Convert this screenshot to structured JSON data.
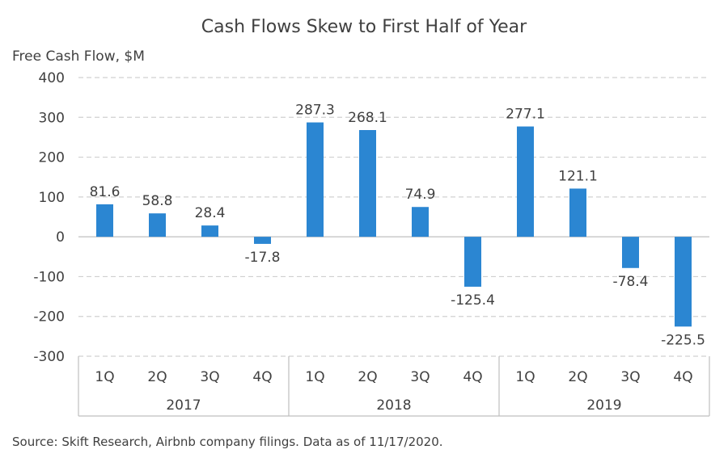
{
  "chart_data": {
    "type": "bar",
    "title": "Cash Flows Skew to First Half of Year",
    "ylabel": "Free Cash Flow, $M",
    "xlabel": "",
    "ylim": [
      -300,
      400
    ],
    "yticks": [
      "400",
      "300",
      "200",
      "100",
      "0",
      "-100",
      "-200",
      "-300"
    ],
    "ytick_values": [
      400,
      300,
      200,
      100,
      0,
      -100,
      -200,
      -300
    ],
    "grid": true,
    "categories": [
      "1Q",
      "2Q",
      "3Q",
      "4Q",
      "1Q",
      "2Q",
      "3Q",
      "4Q",
      "1Q",
      "2Q",
      "3Q",
      "4Q"
    ],
    "groups": [
      "2017",
      "2018",
      "2019"
    ],
    "values": [
      81.6,
      58.8,
      28.4,
      -17.8,
      287.3,
      268.1,
      74.9,
      -125.4,
      277.1,
      121.1,
      -78.4,
      -225.5
    ],
    "labels": [
      "81.6",
      "58.8",
      "28.4",
      "-17.8",
      "287.3",
      "268.1",
      "74.9",
      "-125.4",
      "277.1",
      "121.1",
      "-78.4",
      "-225.5"
    ],
    "bar_color": "#2B86D2",
    "source": "Source: Skift Research, Airbnb company filings. Data as of 11/17/2020."
  }
}
